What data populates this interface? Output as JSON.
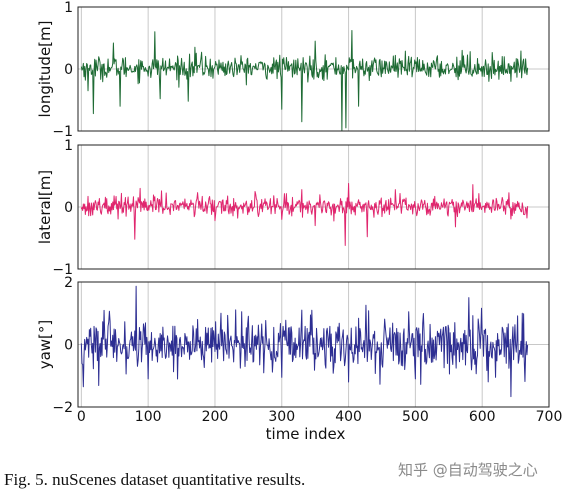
{
  "caption": "Fig. 5.   nuScenes dataset quantitative results.",
  "watermark": "知乎 @自动驾驶之心",
  "chart_data": [
    {
      "type": "line",
      "name": "longitude-panel",
      "ylabel": "longitude[m]",
      "ylim": [
        -1,
        1
      ],
      "yticks": [
        -1,
        0,
        1
      ],
      "xlim": [
        -5,
        700
      ],
      "grid": true,
      "color": "#1e6b34",
      "x_range": [
        0,
        668
      ],
      "baseline": 0.02,
      "noise_std": 0.09,
      "spikes": [
        {
          "x": 6,
          "y": -0.18
        },
        {
          "x": 10,
          "y": -0.35
        },
        {
          "x": 18,
          "y": -0.72
        },
        {
          "x": 48,
          "y": 0.42
        },
        {
          "x": 58,
          "y": -0.6
        },
        {
          "x": 110,
          "y": 0.6
        },
        {
          "x": 118,
          "y": -0.48
        },
        {
          "x": 160,
          "y": -0.52
        },
        {
          "x": 170,
          "y": 0.35
        },
        {
          "x": 180,
          "y": 0.27
        },
        {
          "x": 300,
          "y": -0.65
        },
        {
          "x": 330,
          "y": -0.85
        },
        {
          "x": 350,
          "y": 0.45
        },
        {
          "x": 390,
          "y": -1.0
        },
        {
          "x": 396,
          "y": -0.95
        },
        {
          "x": 405,
          "y": 0.62
        },
        {
          "x": 415,
          "y": -0.6
        },
        {
          "x": 470,
          "y": 0.22
        },
        {
          "x": 570,
          "y": 0.3
        },
        {
          "x": 582,
          "y": 0.28
        },
        {
          "x": 610,
          "y": -0.2
        },
        {
          "x": 662,
          "y": 0.16
        }
      ]
    },
    {
      "type": "line",
      "name": "lateral-panel",
      "ylabel": "lateral[m]",
      "ylim": [
        -1,
        1
      ],
      "yticks": [
        -1,
        0,
        1
      ],
      "xlim": [
        -5,
        700
      ],
      "grid": true,
      "color": "#e0266e",
      "x_range": [
        0,
        668
      ],
      "baseline": 0.02,
      "noise_std": 0.08,
      "spikes": [
        {
          "x": 6,
          "y": -0.12
        },
        {
          "x": 60,
          "y": 0.22
        },
        {
          "x": 80,
          "y": -0.52
        },
        {
          "x": 88,
          "y": 0.3
        },
        {
          "x": 120,
          "y": 0.26
        },
        {
          "x": 200,
          "y": -0.22
        },
        {
          "x": 260,
          "y": 0.25
        },
        {
          "x": 300,
          "y": -0.2
        },
        {
          "x": 330,
          "y": 0.28
        },
        {
          "x": 350,
          "y": -0.3
        },
        {
          "x": 395,
          "y": -0.62
        },
        {
          "x": 400,
          "y": 0.38
        },
        {
          "x": 428,
          "y": -0.48
        },
        {
          "x": 470,
          "y": 0.28
        },
        {
          "x": 560,
          "y": -0.32
        },
        {
          "x": 586,
          "y": 0.36
        },
        {
          "x": 640,
          "y": 0.23
        },
        {
          "x": 662,
          "y": -0.12
        }
      ]
    },
    {
      "type": "line",
      "name": "yaw-panel",
      "ylabel": "yaw[°]",
      "ylim": [
        -2,
        2
      ],
      "yticks": [
        -2,
        0,
        2
      ],
      "xlim": [
        -5,
        700
      ],
      "xticks": [
        0,
        100,
        200,
        300,
        400,
        500,
        600,
        700
      ],
      "xlabel": "time index",
      "grid": true,
      "color": "#2d2e92",
      "x_range": [
        0,
        668
      ],
      "baseline": 0.0,
      "noise_std": 0.42,
      "spikes": [
        {
          "x": 3,
          "y": -1.35
        },
        {
          "x": 100,
          "y": -1.1
        },
        {
          "x": 240,
          "y": 1.05
        },
        {
          "x": 300,
          "y": -1.05
        },
        {
          "x": 330,
          "y": 1.1
        },
        {
          "x": 400,
          "y": -1.2
        },
        {
          "x": 490,
          "y": 1.05
        },
        {
          "x": 500,
          "y": -1.1
        },
        {
          "x": 580,
          "y": 1.5
        },
        {
          "x": 620,
          "y": -1.05
        },
        {
          "x": 660,
          "y": 1.0
        }
      ]
    }
  ]
}
